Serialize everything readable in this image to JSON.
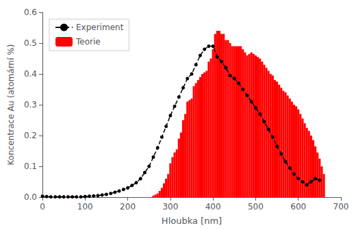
{
  "chart_data": {
    "type": "line",
    "xlabel": "Hloubka [nm]",
    "ylabel": "Koncentrace Au (atomární %)",
    "xlim": [
      0,
      700
    ],
    "ylim": [
      0,
      0.6
    ],
    "xticks": [
      0,
      100,
      200,
      300,
      400,
      500,
      600,
      700
    ],
    "yticks": [
      {
        "value": 0,
        "label": "0.0"
      },
      0.1,
      0.2,
      0.3,
      0.4,
      0.5,
      0.6
    ],
    "grid": false,
    "legend": "upper left",
    "series": [
      {
        "name": "Experiment",
        "type": "line",
        "color": "#000000",
        "line_style": "dashed",
        "marker": "circle",
        "x": [
          0,
          10,
          20,
          30,
          40,
          50,
          60,
          70,
          80,
          90,
          100,
          110,
          120,
          130,
          140,
          150,
          160,
          170,
          180,
          190,
          200,
          210,
          220,
          230,
          240,
          250,
          260,
          270,
          280,
          290,
          300,
          310,
          320,
          330,
          340,
          350,
          360,
          370,
          380,
          390,
          400,
          410,
          420,
          430,
          440,
          450,
          460,
          470,
          480,
          490,
          500,
          510,
          520,
          530,
          540,
          550,
          560,
          570,
          580,
          590,
          600,
          610,
          620,
          630,
          640,
          650
        ],
        "values": [
          0.003,
          0.002,
          0.001,
          0.001,
          0.001,
          0.001,
          0.001,
          0.001,
          0.001,
          0.001,
          0.002,
          0.003,
          0.004,
          0.005,
          0.007,
          0.009,
          0.012,
          0.016,
          0.02,
          0.025,
          0.03,
          0.038,
          0.047,
          0.06,
          0.08,
          0.1,
          0.13,
          0.16,
          0.195,
          0.23,
          0.265,
          0.295,
          0.325,
          0.355,
          0.385,
          0.4,
          0.43,
          0.46,
          0.48,
          0.49,
          0.49,
          0.455,
          0.44,
          0.42,
          0.395,
          0.385,
          0.37,
          0.35,
          0.33,
          0.31,
          0.29,
          0.27,
          0.245,
          0.22,
          0.195,
          0.165,
          0.14,
          0.115,
          0.095,
          0.075,
          0.06,
          0.05,
          0.04,
          0.05,
          0.06,
          0.055
        ]
      },
      {
        "name": "Teorie",
        "type": "bar",
        "color": "#ff0000",
        "x": [
          260,
          265,
          270,
          275,
          280,
          285,
          290,
          295,
          300,
          305,
          310,
          315,
          320,
          325,
          330,
          335,
          340,
          345,
          350,
          355,
          360,
          365,
          370,
          375,
          380,
          385,
          390,
          395,
          400,
          405,
          410,
          415,
          420,
          425,
          430,
          435,
          440,
          445,
          450,
          455,
          460,
          465,
          470,
          475,
          480,
          485,
          490,
          495,
          500,
          505,
          510,
          515,
          520,
          525,
          530,
          535,
          540,
          545,
          550,
          555,
          560,
          565,
          570,
          575,
          580,
          585,
          590,
          595,
          600,
          605,
          610,
          615,
          620,
          625,
          630,
          635,
          640,
          645,
          650,
          655,
          660
        ],
        "values": [
          0.005,
          0.008,
          0.012,
          0.02,
          0.03,
          0.045,
          0.06,
          0.075,
          0.11,
          0.13,
          0.145,
          0.155,
          0.19,
          0.21,
          0.25,
          0.27,
          0.31,
          0.315,
          0.32,
          0.36,
          0.37,
          0.38,
          0.39,
          0.4,
          0.405,
          0.41,
          0.44,
          0.45,
          0.48,
          0.53,
          0.54,
          0.54,
          0.53,
          0.53,
          0.51,
          0.51,
          0.5,
          0.49,
          0.49,
          0.49,
          0.49,
          0.49,
          0.48,
          0.47,
          0.46,
          0.465,
          0.47,
          0.465,
          0.46,
          0.455,
          0.45,
          0.44,
          0.43,
          0.42,
          0.41,
          0.4,
          0.395,
          0.38,
          0.375,
          0.365,
          0.355,
          0.345,
          0.34,
          0.33,
          0.32,
          0.31,
          0.3,
          0.295,
          0.285,
          0.27,
          0.255,
          0.24,
          0.225,
          0.215,
          0.2,
          0.185,
          0.165,
          0.145,
          0.125,
          0.1,
          0.075
        ]
      }
    ]
  }
}
